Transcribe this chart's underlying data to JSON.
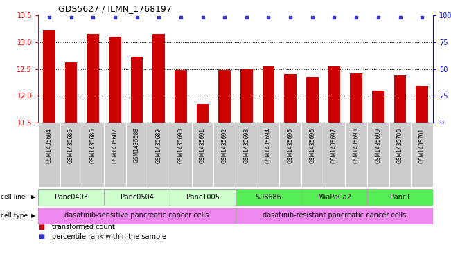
{
  "title": "GDS5627 / ILMN_1768197",
  "samples": [
    "GSM1435684",
    "GSM1435685",
    "GSM1435686",
    "GSM1435687",
    "GSM1435688",
    "GSM1435689",
    "GSM1435690",
    "GSM1435691",
    "GSM1435692",
    "GSM1435693",
    "GSM1435694",
    "GSM1435695",
    "GSM1435696",
    "GSM1435697",
    "GSM1435698",
    "GSM1435699",
    "GSM1435700",
    "GSM1435701"
  ],
  "values": [
    13.22,
    12.62,
    13.15,
    13.1,
    12.72,
    13.15,
    12.48,
    11.85,
    12.48,
    12.5,
    12.55,
    12.4,
    12.35,
    12.55,
    12.42,
    12.1,
    12.38,
    12.18
  ],
  "ylim_left": [
    11.5,
    13.5
  ],
  "ylim_right": [
    0,
    100
  ],
  "yticks_left": [
    11.5,
    12.0,
    12.5,
    13.0,
    13.5
  ],
  "yticks_right": [
    0,
    25,
    50,
    75,
    100
  ],
  "bar_color": "#cc0000",
  "percentile_color": "#3333cc",
  "cell_lines": [
    {
      "label": "Panc0403",
      "start": 0,
      "end": 2,
      "color": "#ccffcc"
    },
    {
      "label": "Panc0504",
      "start": 3,
      "end": 5,
      "color": "#ccffcc"
    },
    {
      "label": "Panc1005",
      "start": 6,
      "end": 8,
      "color": "#ccffcc"
    },
    {
      "label": "SU8686",
      "start": 9,
      "end": 11,
      "color": "#55ee55"
    },
    {
      "label": "MiaPaCa2",
      "start": 12,
      "end": 14,
      "color": "#55ee55"
    },
    {
      "label": "Panc1",
      "start": 15,
      "end": 17,
      "color": "#55ee55"
    }
  ],
  "cell_types": [
    {
      "label": "dasatinib-sensitive pancreatic cancer cells",
      "start": 0,
      "end": 8,
      "color": "#ee88ee"
    },
    {
      "label": "dasatinib-resistant pancreatic cancer cells",
      "start": 9,
      "end": 17,
      "color": "#ee88ee"
    }
  ],
  "cell_line_label": "cell line",
  "cell_type_label": "cell type",
  "legend_bar_label": "transformed count",
  "legend_pct_label": "percentile rank within the sample",
  "sample_row_color": "#cccccc",
  "grid_color": "#000000",
  "background_color": "#ffffff"
}
